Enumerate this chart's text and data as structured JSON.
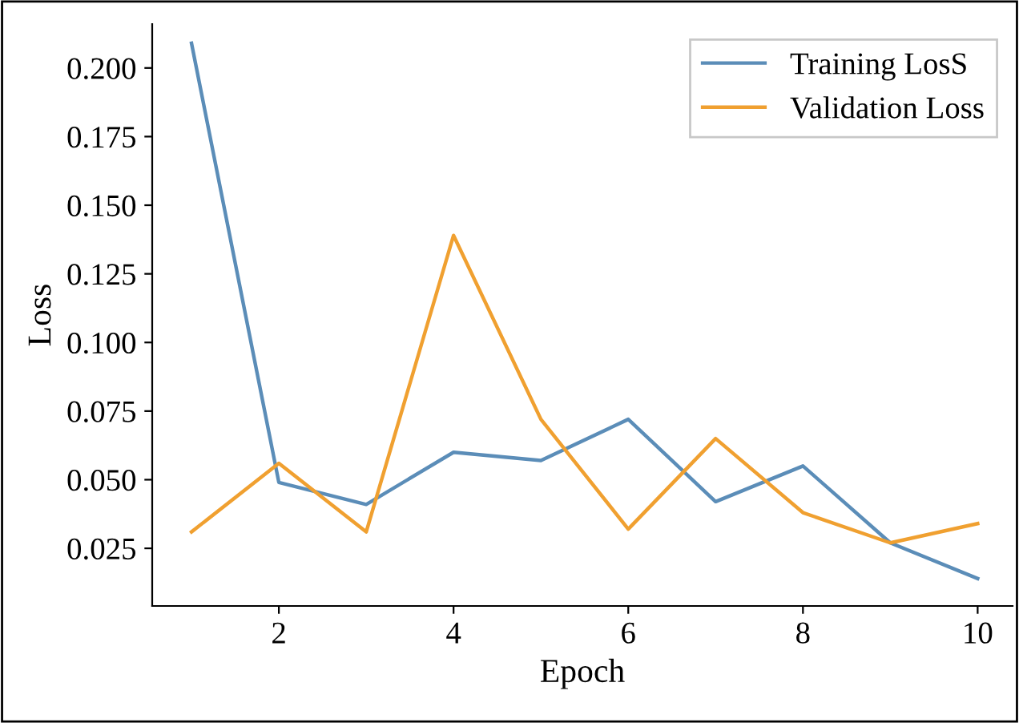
{
  "chart_data": {
    "type": "line",
    "xlabel": "Epoch",
    "ylabel": "Loss",
    "x": [
      1,
      2,
      3,
      4,
      5,
      6,
      7,
      8,
      9,
      10
    ],
    "series": [
      {
        "name": "Training LosS",
        "color": "#5b8db8",
        "values": [
          0.209,
          0.049,
          0.041,
          0.06,
          0.057,
          0.072,
          0.042,
          0.055,
          0.027,
          0.014
        ]
      },
      {
        "name": "Validation Loss",
        "color": "#f0a030",
        "values": [
          0.031,
          0.056,
          0.031,
          0.139,
          0.072,
          0.032,
          0.065,
          0.038,
          0.027,
          0.034
        ]
      }
    ],
    "xlim": [
      0.55,
      10.4
    ],
    "xticks": [
      2,
      4,
      6,
      8,
      10
    ],
    "ylim": [
      0.004,
      0.216
    ],
    "yticks": [
      {
        "value": 0.025,
        "label": "0.025"
      },
      {
        "value": 0.05,
        "label": "0.050"
      },
      {
        "value": 0.075,
        "label": "0.075"
      },
      {
        "value": 0.1,
        "label": "0.100"
      },
      {
        "value": 0.125,
        "label": "0.125"
      },
      {
        "value": 0.15,
        "label": "0.150"
      },
      {
        "value": 0.175,
        "label": "0.175"
      },
      {
        "value": 0.2,
        "label": "0.200"
      }
    ],
    "grid": false,
    "legend": "top right",
    "marker": "none",
    "line_style": "solid"
  }
}
